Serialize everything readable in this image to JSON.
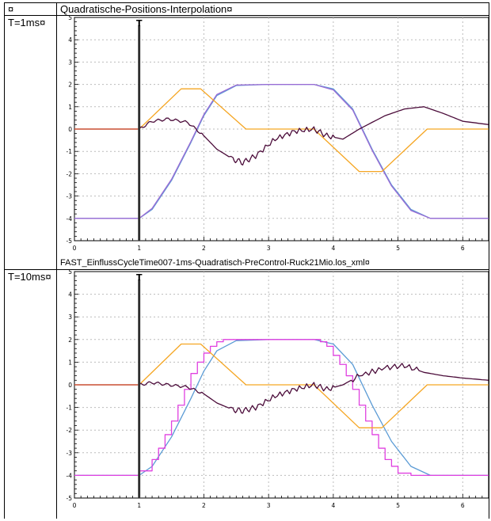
{
  "table": {
    "header_left": "¤",
    "header_title": "Quadratische-Positions-Interpolation¤",
    "rows": [
      {
        "label": "T=1ms¤",
        "caption": "FAST_EinflussCycleTime007-1ms-Quadratisch-PreControl-Ruck21Mio.los_xml¤"
      },
      {
        "label": "T=10ms¤",
        "caption": ""
      }
    ]
  },
  "colors": {
    "position": "#5b9bd5",
    "position_sampled": "#e040e0",
    "position_fine": "#9b6bd5",
    "velocity": "#f5a623",
    "error": "#4b0c3a",
    "initial": "#c0392b",
    "grid": "#bcbcbc",
    "marker": "#555555"
  },
  "chart_data": [
    {
      "type": "line",
      "marker_label": "T",
      "marker_x": 1,
      "xlim": [
        0,
        6.4
      ],
      "ylim": [
        -5,
        5
      ],
      "xticks": [
        "0",
        "1",
        "2",
        "3",
        "4",
        "5",
        "6"
      ],
      "yticks": [
        "5",
        "4",
        "3",
        "2",
        "1",
        "0",
        "-1",
        "-2",
        "-3",
        "-4",
        "-5"
      ],
      "series": [
        {
          "role": "position",
          "color_key": "position",
          "x": [
            0,
            1,
            1.2,
            1.5,
            1.8,
            2.0,
            2.2,
            2.5,
            3.0,
            3.7,
            4.0,
            4.3,
            4.6,
            4.9,
            5.2,
            5.5,
            6.4
          ],
          "y": [
            -4,
            -4,
            -3.6,
            -2.3,
            -0.6,
            0.6,
            1.5,
            1.95,
            2,
            2,
            1.8,
            0.9,
            -0.9,
            -2.5,
            -3.6,
            -4,
            -4
          ]
        },
        {
          "role": "position_fine",
          "color_key": "position_fine",
          "x": [
            0,
            1,
            1.2,
            1.5,
            1.8,
            2.0,
            2.2,
            2.5,
            3.0,
            3.7,
            4.0,
            4.3,
            4.6,
            4.9,
            5.2,
            5.5,
            6.4
          ],
          "y": [
            -4,
            -4,
            -3.55,
            -2.25,
            -0.55,
            0.65,
            1.55,
            1.97,
            2,
            2,
            1.75,
            0.85,
            -0.95,
            -2.55,
            -3.65,
            -4,
            -4
          ]
        },
        {
          "role": "velocity",
          "color_key": "velocity",
          "x": [
            0,
            1,
            1.65,
            1.95,
            2.65,
            3.7,
            4.4,
            4.75,
            5.45,
            6.4
          ],
          "y": [
            0,
            0,
            1.8,
            1.8,
            0,
            0,
            -1.9,
            -1.9,
            0,
            0
          ]
        },
        {
          "role": "error",
          "color_key": "error",
          "x": [
            1,
            1.2,
            1.45,
            1.75,
            2.0,
            2.2,
            2.45,
            2.6,
            2.8,
            3.1,
            3.4,
            3.7,
            3.9,
            4.15,
            4.4,
            4.8,
            5.1,
            5.4,
            5.7,
            6.0,
            6.4
          ],
          "y": [
            0,
            0.35,
            0.45,
            0.3,
            -0.3,
            -0.9,
            -1.35,
            -1.5,
            -1.2,
            -0.45,
            -0.1,
            0,
            -0.3,
            -0.45,
            0,
            0.6,
            0.9,
            1.0,
            0.7,
            0.35,
            0.2
          ]
        },
        {
          "role": "initial",
          "color_key": "initial",
          "x": [
            0,
            1
          ],
          "y": [
            0,
            0
          ]
        }
      ]
    },
    {
      "type": "line",
      "marker_label": "T",
      "marker_x": 1,
      "xlim": [
        0,
        6.4
      ],
      "ylim": [
        -5,
        5
      ],
      "xticks": [
        "0",
        "1",
        "2",
        "3",
        "4",
        "5",
        "6"
      ],
      "yticks": [
        "5",
        "4",
        "3",
        "2",
        "1",
        "0",
        "-1",
        "-2",
        "-3",
        "-4",
        "-5"
      ],
      "series": [
        {
          "role": "position",
          "color_key": "position",
          "x": [
            0,
            1,
            1.2,
            1.5,
            1.8,
            2.0,
            2.2,
            2.5,
            3.0,
            3.7,
            4.0,
            4.3,
            4.6,
            4.9,
            5.2,
            5.5,
            6.4
          ],
          "y": [
            -4,
            -4,
            -3.6,
            -2.3,
            -0.6,
            0.6,
            1.5,
            1.95,
            2,
            2,
            1.8,
            0.9,
            -0.9,
            -2.5,
            -3.6,
            -4,
            -4
          ]
        },
        {
          "role": "position_sampled",
          "color_key": "position_sampled",
          "step": true,
          "x": [
            0,
            1,
            1.1,
            1.2,
            1.3,
            1.4,
            1.5,
            1.6,
            1.7,
            1.8,
            1.9,
            2.0,
            2.1,
            2.2,
            2.3,
            2.4,
            2.5,
            3.7,
            3.8,
            3.9,
            4.0,
            4.1,
            4.2,
            4.3,
            4.4,
            4.5,
            4.6,
            4.7,
            4.8,
            4.9,
            5.0,
            5.1,
            5.2,
            5.3,
            5.5,
            6.4
          ],
          "y": [
            -4,
            -3.8,
            -3.8,
            -3.3,
            -2.8,
            -2.2,
            -1.6,
            -0.9,
            -0.2,
            0.5,
            1.0,
            1.4,
            1.7,
            1.9,
            2,
            2,
            2,
            2,
            1.9,
            1.7,
            1.3,
            0.9,
            0.4,
            -0.2,
            -0.9,
            -1.6,
            -2.2,
            -2.8,
            -3.3,
            -3.6,
            -3.9,
            -3.9,
            -4,
            -4,
            -4,
            -4
          ]
        },
        {
          "role": "velocity",
          "color_key": "velocity",
          "x": [
            0,
            1,
            1.65,
            1.95,
            2.65,
            3.7,
            4.4,
            4.75,
            5.45,
            6.4
          ],
          "y": [
            0,
            0,
            1.8,
            1.8,
            0,
            0,
            -1.9,
            -1.9,
            0,
            0
          ]
        },
        {
          "role": "error",
          "color_key": "error",
          "x": [
            1,
            1.2,
            1.45,
            1.75,
            2.0,
            2.2,
            2.45,
            2.6,
            2.8,
            3.1,
            3.4,
            3.7,
            3.9,
            4.15,
            4.4,
            4.8,
            5.1,
            5.4,
            5.7,
            6.0,
            6.4
          ],
          "y": [
            0,
            0.1,
            0,
            -0.1,
            -0.4,
            -0.8,
            -1.1,
            -1.15,
            -1.0,
            -0.5,
            -0.2,
            0,
            -0.2,
            0,
            0.4,
            0.75,
            0.85,
            0.55,
            0.4,
            0.3,
            0.2
          ]
        },
        {
          "role": "initial",
          "color_key": "initial",
          "x": [
            0,
            1
          ],
          "y": [
            0,
            0
          ]
        }
      ]
    }
  ]
}
